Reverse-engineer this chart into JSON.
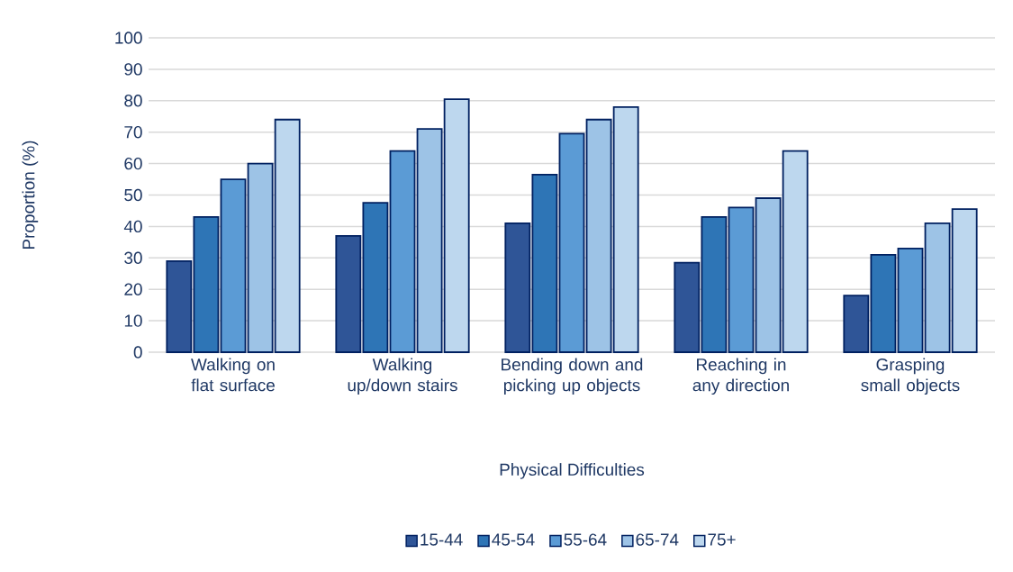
{
  "chart_data": {
    "type": "bar",
    "xlabel": "Physical Difficulties",
    "ylabel": "Proportion (%)",
    "categories": [
      "Walking on flat surface",
      "Walking up/down stairs",
      "Bending down and picking up objects",
      "Reaching in any direction",
      "Grasping small objects"
    ],
    "series": [
      {
        "name": "15-44",
        "color": "#2f5597",
        "values": [
          29,
          37,
          41,
          28.5,
          18
        ]
      },
      {
        "name": "45-54",
        "color": "#2e75b6",
        "values": [
          43,
          47.5,
          56.5,
          43,
          31
        ]
      },
      {
        "name": "55-64",
        "color": "#5b9bd5",
        "values": [
          55,
          64,
          69.5,
          46,
          33
        ]
      },
      {
        "name": "65-74",
        "color": "#9dc3e6",
        "values": [
          60,
          71,
          74,
          49,
          41
        ]
      },
      {
        "name": "75+",
        "color": "#bdd7ee",
        "values": [
          74,
          80.5,
          78,
          64,
          45.5
        ]
      }
    ],
    "ylim": [
      0,
      100
    ],
    "yticks": [
      0,
      10,
      20,
      30,
      40,
      50,
      60,
      70,
      80,
      90,
      100
    ],
    "grid": "y",
    "legend": "bottom"
  }
}
